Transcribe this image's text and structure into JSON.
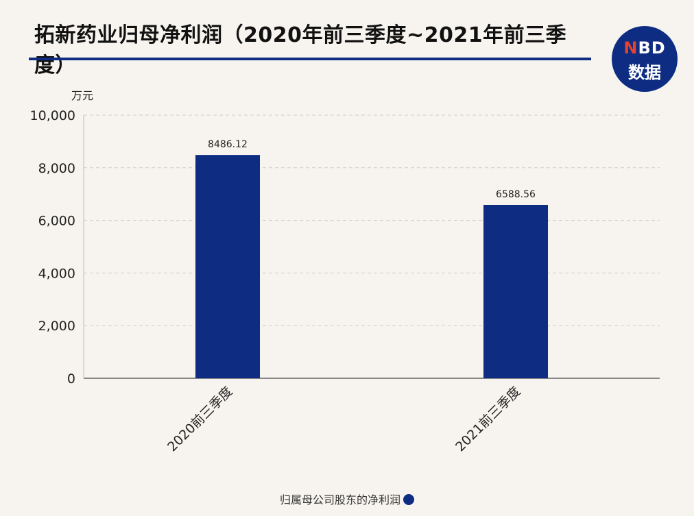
{
  "header": {
    "title": "拓新药业归母净利润（2020年前三季度~2021年前三季度）"
  },
  "logo": {
    "line1_letter_n": "N",
    "line1_rest": "BD",
    "line2": "数据"
  },
  "colors": {
    "bar": "#0e2d82",
    "title_rule": "#0e2d82",
    "logo_bg": "#0e2d82",
    "logo_accent": "#e8402b",
    "grid": "#cccccc",
    "background": "#f7f4ef"
  },
  "chart_data": {
    "type": "bar",
    "title": "拓新药业归母净利润（2020年前三季度~2021年前三季度）",
    "ylabel": "万元",
    "xlabel": "",
    "categories": [
      "2020前三季度",
      "2021前三季度"
    ],
    "series": [
      {
        "name": "归属母公司股东的净利润",
        "values": [
          8486.12,
          6588.56
        ]
      }
    ],
    "data_labels": [
      "8486.12",
      "6588.56"
    ],
    "ylim": [
      0,
      10000
    ],
    "yticks": [
      0,
      2000,
      4000,
      6000,
      8000,
      10000
    ],
    "ytick_labels": [
      "0",
      "2,000",
      "4,000",
      "6,000",
      "8,000",
      "10,000"
    ],
    "grid": true,
    "grid_style": "dashed",
    "legend_position": "bottom"
  },
  "legend": {
    "label": "归属母公司股东的净利润"
  }
}
